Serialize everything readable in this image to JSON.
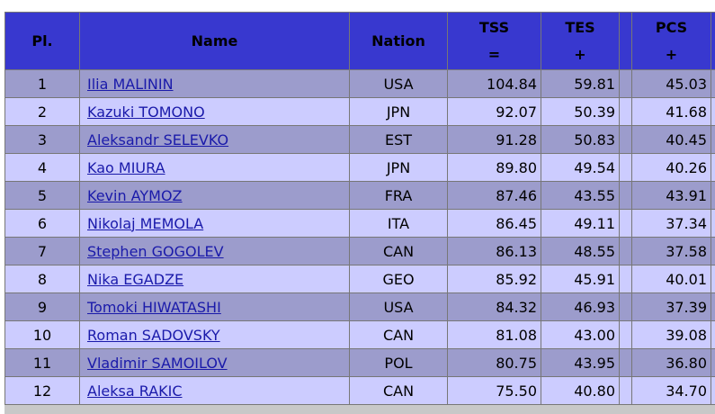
{
  "table": {
    "columns": [
      {
        "label": "Pl."
      },
      {
        "label": "Name"
      },
      {
        "label": "Nation"
      },
      {
        "label": "TSS",
        "sub": "="
      },
      {
        "label": "TES",
        "sub": "+"
      },
      {
        "label": "PCS",
        "sub": "+"
      }
    ],
    "rows": [
      [
        "1",
        "Ilia MALININ",
        "USA",
        "104.84",
        "59.81",
        "45.03"
      ],
      [
        "2",
        "Kazuki TOMONO",
        "JPN",
        "92.07",
        "50.39",
        "41.68"
      ],
      [
        "3",
        "Aleksandr SELEVKO",
        "EST",
        "91.28",
        "50.83",
        "40.45"
      ],
      [
        "4",
        "Kao MIURA",
        "JPN",
        "89.80",
        "49.54",
        "40.26"
      ],
      [
        "5",
        "Kevin AYMOZ",
        "FRA",
        "87.46",
        "43.55",
        "43.91"
      ],
      [
        "6",
        "Nikolaj MEMOLA",
        "ITA",
        "86.45",
        "49.11",
        "37.34"
      ],
      [
        "7",
        "Stephen GOGOLEV",
        "CAN",
        "86.13",
        "48.55",
        "37.58"
      ],
      [
        "8",
        "Nika EGADZE",
        "GEO",
        "85.92",
        "45.91",
        "40.01"
      ],
      [
        "9",
        "Tomoki HIWATASHI",
        "USA",
        "84.32",
        "46.93",
        "37.39"
      ],
      [
        "10",
        "Roman SADOVSKY",
        "CAN",
        "81.08",
        "43.00",
        "39.08"
      ],
      [
        "11",
        "Vladimir SAMOILOV",
        "POL",
        "80.75",
        "43.95",
        "36.80"
      ],
      [
        "12",
        "Aleksa RAKIC",
        "CAN",
        "75.50",
        "40.80",
        "34.70"
      ]
    ]
  }
}
